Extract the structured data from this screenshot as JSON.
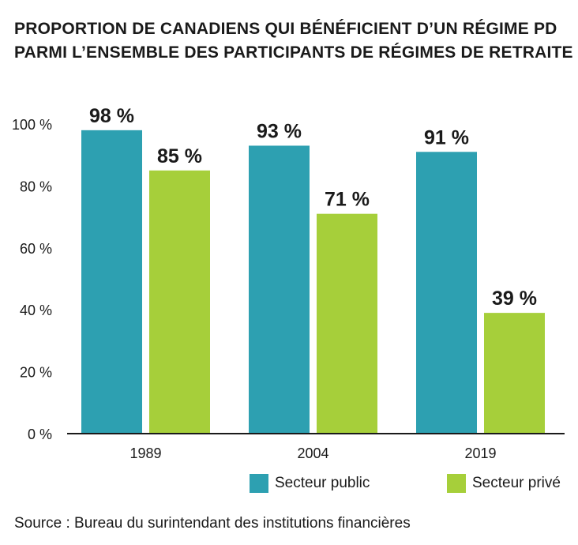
{
  "title_line1": "PROPORTION DE CANADIENS QUI BÉNÉFICIENT D’UN RÉGIME PD",
  "title_line2": "PARMI L’ENSEMBLE DES PARTICIPANTS DE RÉGIMES DE RETRAITE",
  "source": "Source : Bureau du surintendant des institutions financières",
  "colors": {
    "public": "#2da0b1",
    "private": "#a6cf3a",
    "axis": "#1a1a1a"
  },
  "chart_data": {
    "type": "bar",
    "title": "PROPORTION DE CANADIENS QUI BÉNÉFICIENT D’UN RÉGIME PD PARMI L’ENSEMBLE DES PARTICIPANTS DE RÉGIMES DE RETRAITE",
    "categories": [
      "1989",
      "2004",
      "2019"
    ],
    "series": [
      {
        "name": "Secteur public",
        "values": [
          98,
          93,
          91
        ],
        "labels": [
          "98 %",
          "93 %",
          "91 %"
        ]
      },
      {
        "name": "Secteur privé",
        "values": [
          85,
          71,
          39
        ],
        "labels": [
          "85 %",
          "71 %",
          "39 %"
        ]
      }
    ],
    "ylim": [
      0,
      100
    ],
    "yticks": [
      0,
      20,
      40,
      60,
      80,
      100
    ],
    "ytick_labels": [
      "0 %",
      "20 %",
      "40 %",
      "60 %",
      "80 %",
      "100 %"
    ],
    "xlabel": "",
    "ylabel": "",
    "grid": false,
    "legend": "bottom-right"
  }
}
